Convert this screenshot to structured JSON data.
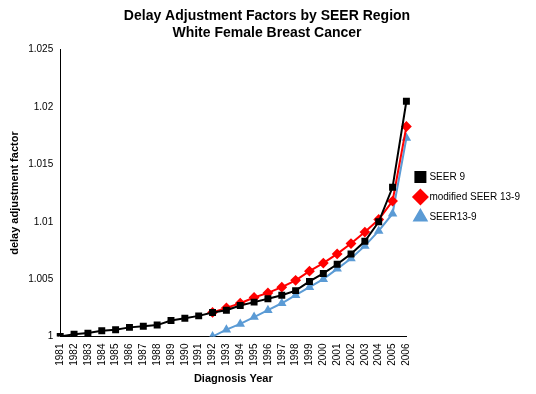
{
  "chart_data": {
    "type": "line",
    "title": [
      "Delay Adjustment Factors by SEER Region",
      "White Female Breast Cancer"
    ],
    "x_label": "Diagnosis Year",
    "y_label": "delay adjustment factor",
    "categories": [
      "1981",
      "1982",
      "1983",
      "1984",
      "1985",
      "1986",
      "1987",
      "1988",
      "1989",
      "1990",
      "1991",
      "1992",
      "1993",
      "1994",
      "1995",
      "1996",
      "1997",
      "1998",
      "1999",
      "2000",
      "2001",
      "2002",
      "2003",
      "2004",
      "2005",
      "2006"
    ],
    "series": [
      {
        "name": "SEER 9",
        "color": "#000000",
        "marker": "square",
        "values": [
          1.0,
          1.0002,
          1.0003,
          1.0005,
          1.0006,
          1.0008,
          1.0009,
          1.001,
          1.0014,
          1.0016,
          1.0018,
          1.0021,
          1.0023,
          1.0027,
          1.003,
          1.0033,
          1.0036,
          1.004,
          1.0048,
          1.0055,
          1.0063,
          1.0072,
          1.0083,
          1.01,
          1.013,
          1.0205
        ]
      },
      {
        "name": "modified SEER 13-9",
        "color": "#ff0000",
        "marker": "diamond",
        "values": [
          null,
          null,
          null,
          null,
          null,
          null,
          null,
          null,
          null,
          null,
          null,
          1.0021,
          1.0025,
          1.0029,
          1.0034,
          1.0038,
          1.0043,
          1.0049,
          1.0057,
          1.0064,
          1.0072,
          1.0081,
          1.0091,
          1.0102,
          1.0118,
          1.0183
        ]
      },
      {
        "name": "SEER13-9",
        "color": "#5b9bd5",
        "marker": "triangle",
        "values": [
          null,
          null,
          null,
          null,
          null,
          null,
          null,
          null,
          null,
          null,
          null,
          1.0,
          1.0006,
          1.0011,
          1.0017,
          1.0023,
          1.0029,
          1.0036,
          1.0043,
          1.005,
          1.0059,
          1.0068,
          1.0079,
          1.0092,
          1.0107,
          1.0173
        ]
      }
    ],
    "ylim": [
      1,
      1.025
    ],
    "yticks": [
      1,
      1.005,
      1.01,
      1.015,
      1.02,
      1.025
    ],
    "grid": false,
    "legend": "right"
  }
}
